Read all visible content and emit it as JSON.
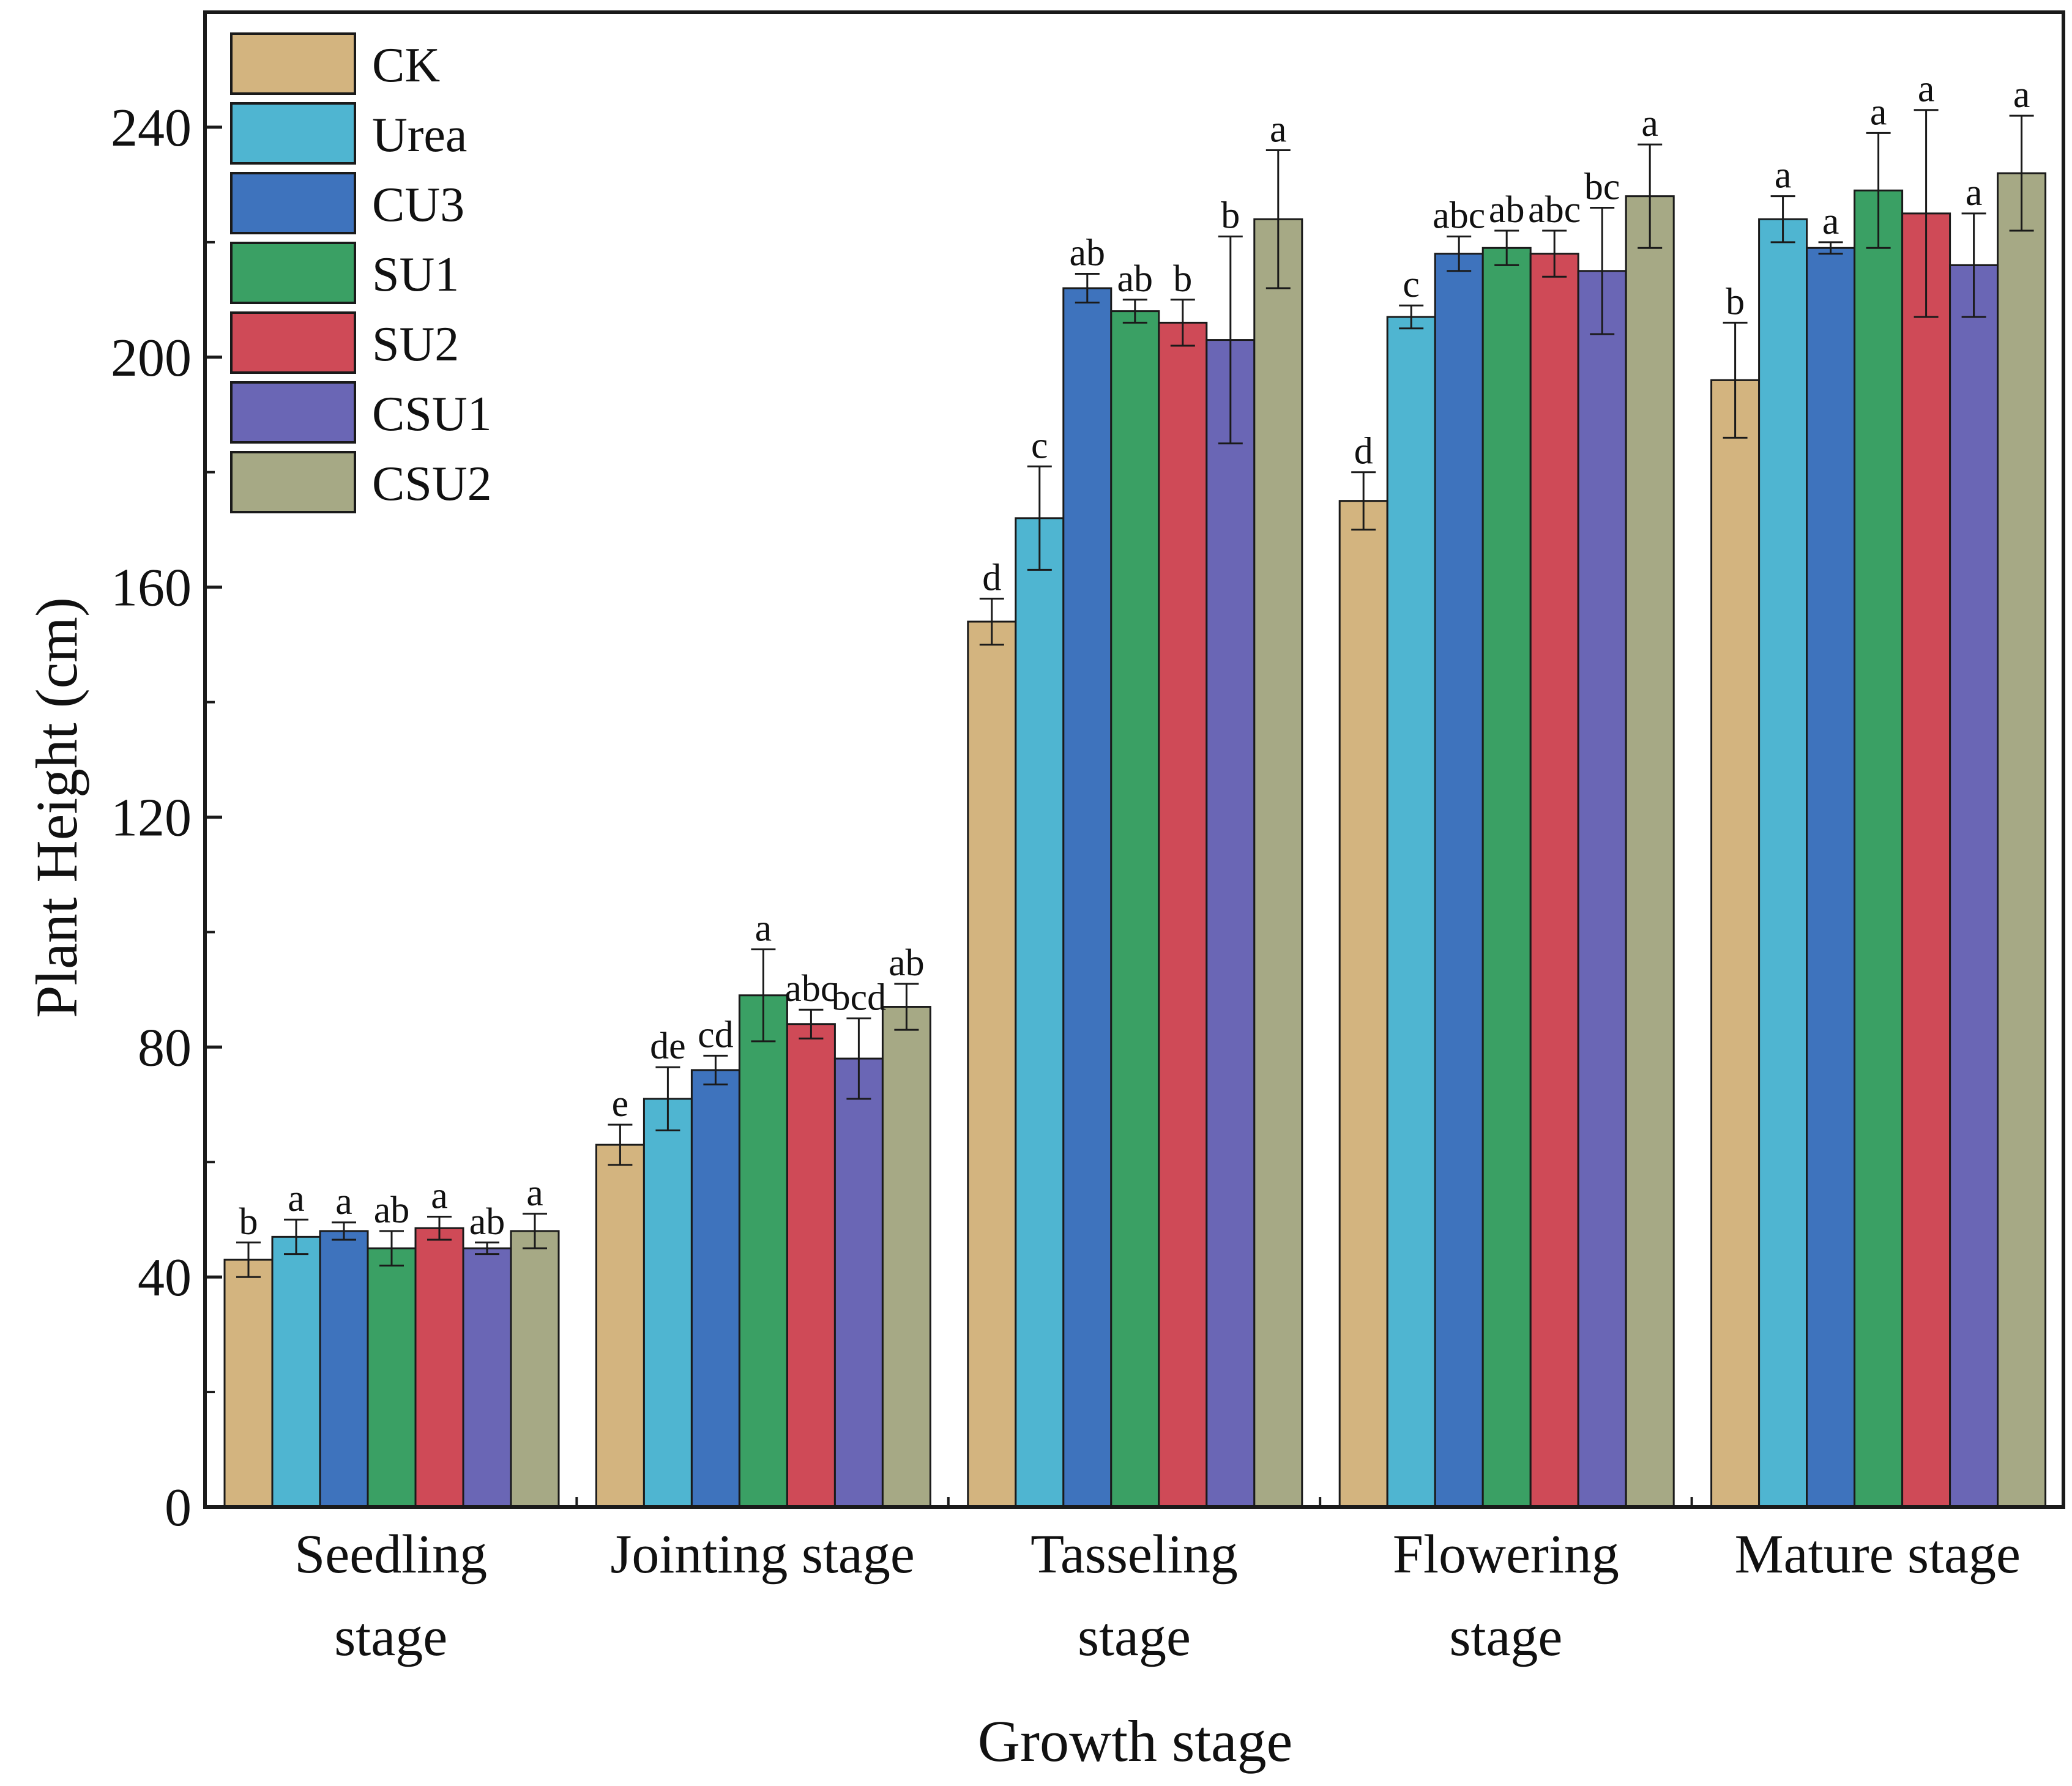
{
  "chart_data": {
    "type": "bar",
    "title": "",
    "xlabel": "Growth stage",
    "ylabel": "Plant Height (cm)",
    "ylim": [
      0,
      260
    ],
    "yticks": [
      0,
      40,
      80,
      120,
      160,
      200,
      240
    ],
    "categories": [
      [
        "Seedling",
        "stage"
      ],
      [
        "Jointing stage"
      ],
      [
        "Tasseling",
        "stage"
      ],
      [
        "Flowering",
        "stage"
      ],
      [
        "Mature stage"
      ]
    ],
    "legend_position": "top-left",
    "series": [
      {
        "name": "CK",
        "color": "#d3b47f",
        "values": [
          43,
          63,
          154,
          175,
          196
        ],
        "errors": [
          3,
          3.5,
          4,
          5,
          10
        ],
        "labels": [
          "b",
          "e",
          "d",
          "d",
          "b"
        ]
      },
      {
        "name": "Urea",
        "color": "#4fb5d1",
        "values": [
          47,
          71,
          172,
          207,
          224
        ],
        "errors": [
          3,
          5.5,
          9,
          2,
          4
        ],
        "labels": [
          "a",
          "de",
          "c",
          "c",
          "a"
        ]
      },
      {
        "name": "CU3",
        "color": "#3e73bd",
        "values": [
          48,
          76,
          212,
          218,
          219
        ],
        "errors": [
          1.5,
          2.5,
          2.5,
          3,
          1
        ],
        "labels": [
          "a",
          "cd",
          "ab",
          "abc",
          "a"
        ]
      },
      {
        "name": "SU1",
        "color": "#3aa064",
        "values": [
          45,
          89,
          208,
          219,
          229
        ],
        "errors": [
          3,
          8,
          2,
          3,
          10
        ],
        "labels": [
          "ab",
          "a",
          "ab",
          "ab",
          "a"
        ]
      },
      {
        "name": "SU2",
        "color": "#cf4a57",
        "values": [
          48.5,
          84,
          206,
          218,
          225
        ],
        "errors": [
          2,
          2.5,
          4,
          4,
          18
        ],
        "labels": [
          "a",
          "abc",
          "b",
          "abc",
          "a"
        ]
      },
      {
        "name": "CSU1",
        "color": "#6a66b5",
        "values": [
          45,
          78,
          203,
          215,
          216
        ],
        "errors": [
          1,
          7,
          18,
          11,
          9
        ],
        "labels": [
          "ab",
          "bcd",
          "b",
          "bc",
          "a"
        ]
      },
      {
        "name": "CSU2",
        "color": "#a6a985",
        "values": [
          48,
          87,
          224,
          228,
          232
        ],
        "errors": [
          3,
          4,
          12,
          9,
          10
        ],
        "labels": [
          "a",
          "ab",
          "a",
          "a",
          "a"
        ]
      }
    ]
  }
}
